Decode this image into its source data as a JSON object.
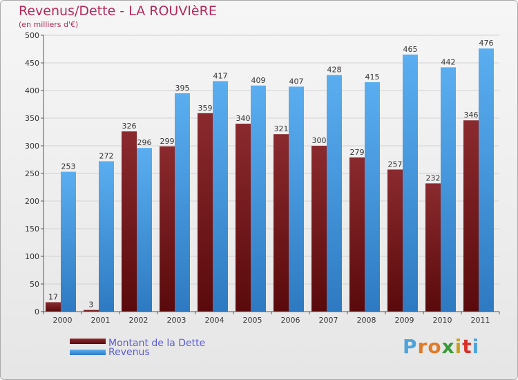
{
  "title": "Revenus/Dette - LA ROUVIèRE",
  "subtitle": "(en milliers d'€)",
  "logo": {
    "letters": [
      "P",
      "r",
      "o",
      "x",
      "i",
      "t",
      "i"
    ],
    "colors": [
      "#4fa3d8",
      "#e07b2a",
      "#e07b2a",
      "#3a9a3a",
      "#c8a020",
      "#d9302a",
      "#4fa3d8"
    ]
  },
  "colors": {
    "dette": "#7a1e22",
    "revenus": "#4fa3e3",
    "legend_text": "#5a5ad8"
  },
  "chart_data": {
    "type": "bar",
    "categories": [
      "2000",
      "2001",
      "2002",
      "2003",
      "2004",
      "2005",
      "2006",
      "2007",
      "2008",
      "2009",
      "2010",
      "2011"
    ],
    "series": [
      {
        "name": "Montant de la Dette",
        "values": [
          17,
          3,
          326,
          299,
          359,
          340,
          321,
          300,
          279,
          257,
          232,
          346
        ]
      },
      {
        "name": "Revenus",
        "values": [
          253,
          272,
          296,
          395,
          417,
          409,
          407,
          428,
          415,
          465,
          442,
          476
        ]
      }
    ],
    "ylim": [
      0,
      500
    ],
    "yticks": [
      0,
      50,
      100,
      150,
      200,
      250,
      300,
      350,
      400,
      450,
      500
    ],
    "grid": true,
    "legend": "bottom-left"
  }
}
